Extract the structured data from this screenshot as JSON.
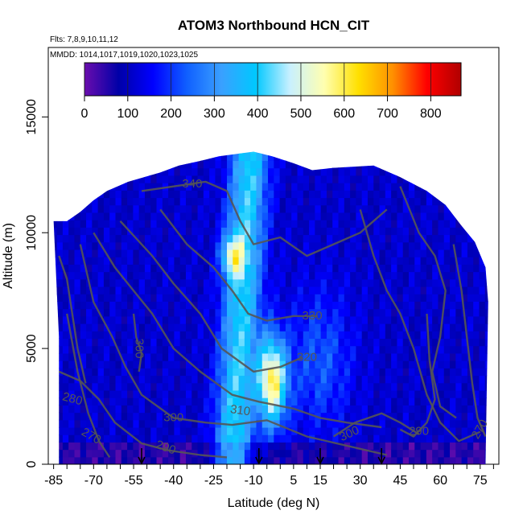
{
  "chart_data": {
    "type": "heatmap",
    "title": "ATOM3 Northbound HCN_CIT",
    "subtitle_lines": [
      "Flts: 7,8,9,10,11,12",
      "MMDD: 1014,1017,1019,1020,1023,1025"
    ],
    "xlabel": "Latitude (deg N)",
    "ylabel": "Altitude (m)",
    "xlim": [
      -87,
      82
    ],
    "ylim": [
      0,
      18000
    ],
    "x_ticks": [
      -85,
      -70,
      -55,
      -40,
      -25,
      -10,
      5,
      15,
      30,
      45,
      60,
      75
    ],
    "y_ticks": [
      0,
      5000,
      10000,
      15000
    ],
    "colorbar": {
      "min": 0,
      "max": 870,
      "ticks": [
        0,
        100,
        200,
        300,
        400,
        500,
        600,
        700,
        800
      ],
      "colors": [
        "#6a0dad",
        "#0000a8",
        "#0000ff",
        "#1060ff",
        "#3aa0ff",
        "#00c8ff",
        "#c8f0ff",
        "#ffffb0",
        "#ffe000",
        "#ff9000",
        "#ff0000",
        "#b00000"
      ]
    },
    "contour_labels": [
      {
        "text": "340",
        "x": -33,
        "y": 12100,
        "rot": 0
      },
      {
        "text": "330",
        "x": 12,
        "y": 6400,
        "rot": 0
      },
      {
        "text": "320",
        "x": 10,
        "y": 4600,
        "rot": 0
      },
      {
        "text": "310",
        "x": -15,
        "y": 2300,
        "rot": 8
      },
      {
        "text": "300",
        "x": -40,
        "y": 2000,
        "rot": 0
      },
      {
        "text": "300",
        "x": 26,
        "y": 1300,
        "rot": -25
      },
      {
        "text": "300",
        "x": -53,
        "y": 5000,
        "rot": 90
      },
      {
        "text": "290",
        "x": -43,
        "y": 700,
        "rot": 20
      },
      {
        "text": "290",
        "x": 52,
        "y": 1400,
        "rot": 0
      },
      {
        "text": "280",
        "x": -78,
        "y": 2800,
        "rot": 15
      },
      {
        "text": "270",
        "x": -71,
        "y": 1200,
        "rot": 30
      },
      {
        "text": "270",
        "x": 75,
        "y": 1500,
        "rot": -60
      }
    ],
    "flight_markers_lat": [
      -52,
      -8,
      15,
      38
    ]
  }
}
